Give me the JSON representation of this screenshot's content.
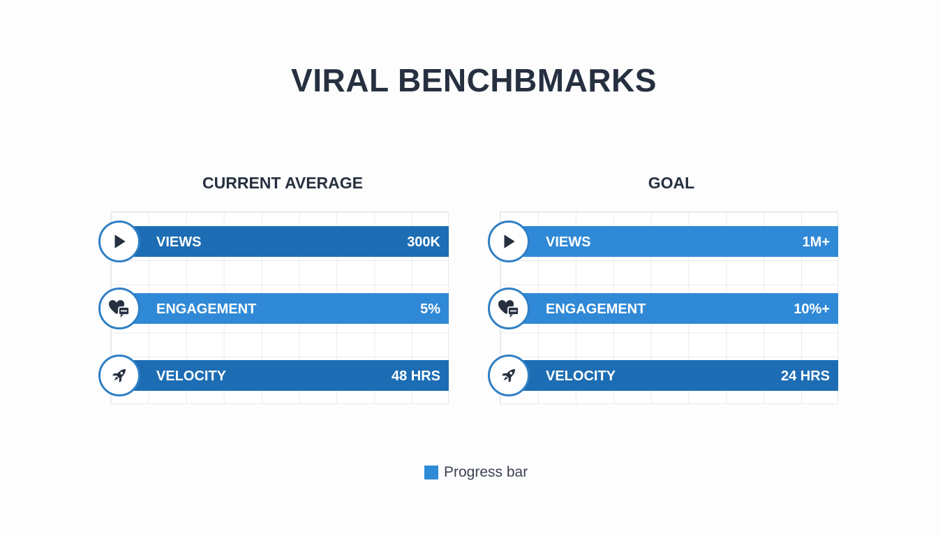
{
  "title": "VIRAL BENCHBMARKS",
  "legend": {
    "label": "Progress bar",
    "color": "#2f8ad6"
  },
  "chart_data": {
    "type": "bar",
    "orientation": "horizontal",
    "title": "VIRAL BENCHBMARKS",
    "legend_position": "bottom-center",
    "grid": true,
    "panels": [
      {
        "heading": "CURRENT AVERAGE",
        "rows": [
          {
            "label": "VIEWS",
            "value": "300K",
            "icon": "play-icon",
            "color": "#1d6db4"
          },
          {
            "label": "ENGAGEMENT",
            "value": "5%",
            "icon": "heart-comment-icon",
            "color": "#3089d6"
          },
          {
            "label": "VELOCITY",
            "value": "48 HRS",
            "icon": "rocket-icon",
            "color": "#1d6db4"
          }
        ]
      },
      {
        "heading": "GOAL",
        "rows": [
          {
            "label": "VIEWS",
            "value": "1M+",
            "icon": "play-icon",
            "color": "#3089d6"
          },
          {
            "label": "ENGAGEMENT",
            "value": "10%+",
            "icon": "heart-comment-icon",
            "color": "#3089d6"
          },
          {
            "label": "VELOCITY",
            "value": "24 HRS",
            "icon": "rocket-icon",
            "color": "#1d6db4"
          }
        ]
      }
    ]
  }
}
